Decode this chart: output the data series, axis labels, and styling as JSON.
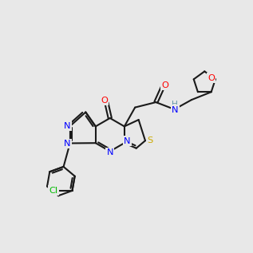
{
  "bg_color": "#e8e8e8",
  "bond_color": "#1a1a1a",
  "N_color": "#0000ff",
  "O_color": "#ff0000",
  "S_color": "#ccaa00",
  "Cl_color": "#00bb00",
  "H_color": "#6699aa",
  "lw": 1.5,
  "dbo": 0.09
}
